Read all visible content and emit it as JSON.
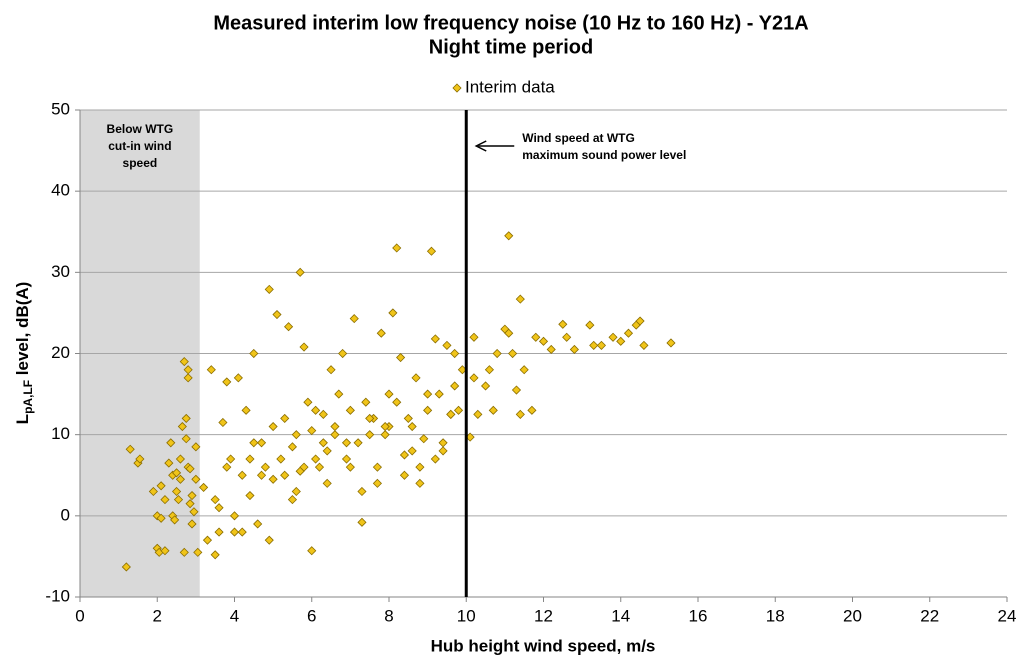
{
  "chart_data": {
    "type": "scatter",
    "title": [
      "Measured interim low frequency noise (10 Hz to 160 Hz) - Y21A",
      "Night time period"
    ],
    "xlabel": "Hub height wind speed, m/s",
    "ylabel": {
      "main": "L",
      "sub": "pA,LF",
      "rest": " level, dB(A)"
    },
    "xlim": [
      0,
      24
    ],
    "ylim": [
      -10,
      50
    ],
    "xticks": [
      0,
      2,
      4,
      6,
      8,
      10,
      12,
      14,
      16,
      18,
      20,
      22,
      24
    ],
    "yticks": [
      -10,
      0,
      10,
      20,
      30,
      40,
      50
    ],
    "grid": true,
    "legend": "top",
    "shaded_region": {
      "x": [
        0,
        3.1
      ],
      "label": [
        "Below WTG",
        "cut-in wind",
        "speed"
      ]
    },
    "vline": {
      "x": 10,
      "label": [
        "Wind speed at WTG",
        "maximum sound power level"
      ]
    },
    "series": [
      {
        "name": "Interim data",
        "color": "#f0c419",
        "edge": "#8a6d00",
        "x": [
          1.2,
          1.3,
          1.5,
          1.55,
          1.9,
          2.0,
          2.0,
          2.05,
          2.1,
          2.1,
          2.2,
          2.2,
          2.3,
          2.35,
          2.4,
          2.4,
          2.45,
          2.5,
          2.5,
          2.55,
          2.6,
          2.6,
          2.65,
          2.7,
          2.7,
          2.75,
          2.75,
          2.8,
          2.8,
          2.8,
          2.85,
          2.85,
          2.9,
          2.9,
          2.95,
          3.0,
          3.0,
          3.05,
          3.2,
          3.3,
          3.4,
          3.5,
          3.6,
          3.7,
          3.8,
          3.9,
          4.0,
          4.1,
          4.2,
          4.3,
          4.4,
          4.5,
          4.6,
          4.7,
          4.8,
          4.9,
          5.0,
          5.0,
          5.1,
          5.2,
          5.3,
          5.4,
          5.5,
          5.6,
          5.7,
          5.7,
          5.8,
          5.9,
          6.0,
          6.0,
          6.1,
          6.2,
          6.3,
          6.4,
          6.5,
          6.6,
          6.7,
          6.8,
          6.9,
          7.0,
          7.1,
          7.2,
          7.3,
          7.4,
          7.5,
          7.6,
          7.7,
          7.8,
          7.9,
          8.0,
          8.1,
          8.2,
          8.3,
          8.4,
          8.5,
          8.6,
          8.7,
          8.8,
          8.9,
          9.0,
          9.1,
          9.2,
          9.3,
          9.4,
          9.5,
          9.6,
          9.7,
          9.8,
          9.9,
          3.5,
          3.8,
          4.2,
          4.5,
          4.9,
          5.3,
          5.6,
          6.1,
          6.4,
          6.9,
          7.3,
          7.7,
          8.0,
          8.4,
          8.8,
          9.2,
          9.6,
          4.0,
          4.7,
          5.5,
          6.3,
          7.0,
          7.9,
          8.6,
          9.4,
          3.6,
          4.4,
          5.8,
          6.6,
          7.5,
          8.2,
          9.0,
          9.7,
          10.1,
          10.2,
          10.2,
          10.3,
          10.5,
          10.6,
          10.7,
          10.8,
          11.0,
          11.1,
          11.1,
          11.2,
          11.3,
          11.4,
          11.4,
          11.5,
          11.7,
          11.8,
          12.0,
          12.2,
          12.5,
          12.6,
          12.8,
          13.2,
          13.3,
          13.5,
          13.8,
          14.0,
          14.2,
          14.4,
          14.5,
          14.6,
          15.3
        ],
        "values": [
          -6.3,
          8.2,
          6.5,
          7,
          3,
          0,
          -4,
          -4.5,
          3.7,
          -0.3,
          2,
          -4.3,
          6.5,
          9,
          5,
          0,
          -0.5,
          3,
          5.3,
          2,
          4.5,
          7,
          11,
          19,
          -4.5,
          12,
          9.5,
          6,
          18,
          17,
          5.8,
          1.5,
          2.5,
          -1,
          0.5,
          8.5,
          4.5,
          -4.5,
          3.5,
          -3,
          18,
          -4.8,
          1,
          11.5,
          16.5,
          7,
          -2,
          17,
          5,
          13,
          2.5,
          20,
          -1,
          9,
          6,
          27.9,
          4.5,
          11,
          24.8,
          7,
          12,
          23.3,
          8.5,
          10,
          30,
          5.5,
          20.8,
          14,
          -4.3,
          10.5,
          13,
          6,
          12.5,
          8,
          18,
          11,
          15,
          20,
          7,
          13,
          24.3,
          9,
          -0.8,
          14,
          10,
          12,
          4,
          22.5,
          10,
          15,
          25,
          33,
          19.5,
          7.5,
          12,
          11,
          17,
          4,
          9.5,
          13,
          32.6,
          21.8,
          15,
          8,
          21,
          12.5,
          20,
          13,
          18,
          2,
          6,
          -2,
          9,
          -3,
          5,
          3,
          7,
          4,
          9,
          3,
          6,
          11,
          5,
          6,
          7,
          12.5,
          0,
          5,
          2,
          9,
          6,
          11,
          8,
          9,
          -2,
          7,
          6,
          10,
          12,
          14,
          15,
          16,
          9.7,
          22,
          17,
          12.5,
          16,
          18,
          13,
          20,
          23,
          34.5,
          22.5,
          20,
          15.5,
          26.7,
          12.5,
          18,
          13,
          22,
          21.5,
          20.5,
          23.6,
          22,
          20.5,
          23.5,
          21,
          21,
          22,
          21.5,
          22.5,
          23.5,
          24,
          21,
          21.3
        ]
      }
    ]
  }
}
